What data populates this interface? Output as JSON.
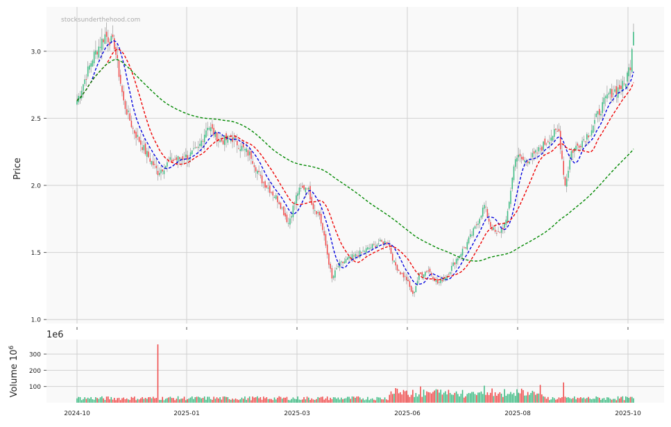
{
  "chart_data": [
    {
      "type": "candlestick",
      "panel": "price",
      "ylabel": "Price",
      "watermark": "stocksunderthehood.com",
      "ylim": [
        0.97,
        3.33
      ],
      "y_ticks": [
        "1.0",
        "1.5",
        "2.0",
        "2.5",
        "3.0"
      ],
      "x_ticks": [
        "2024-10",
        "2025-01",
        "2025-03",
        "2025-06",
        "2025-08",
        "2025-10"
      ],
      "grid": true,
      "up_color": "#3cbb82",
      "down_color": "#f04a4a",
      "ma_colors": [
        "#0000dd",
        "#ee0000",
        "#008800"
      ],
      "price_anchors": [
        [
          0,
          2.63
        ],
        [
          10,
          2.95
        ],
        [
          18,
          3.12
        ],
        [
          24,
          3.05
        ],
        [
          30,
          2.62
        ],
        [
          36,
          2.42
        ],
        [
          44,
          2.25
        ],
        [
          52,
          2.1
        ],
        [
          60,
          2.18
        ],
        [
          66,
          2.2
        ],
        [
          72,
          2.22
        ],
        [
          78,
          2.27
        ],
        [
          84,
          2.45
        ],
        [
          92,
          2.33
        ],
        [
          100,
          2.35
        ],
        [
          106,
          2.28
        ],
        [
          112,
          2.22
        ],
        [
          118,
          2.05
        ],
        [
          124,
          1.97
        ],
        [
          130,
          1.88
        ],
        [
          136,
          1.72
        ],
        [
          142,
          1.95
        ],
        [
          148,
          2.0
        ],
        [
          152,
          1.84
        ],
        [
          156,
          1.78
        ],
        [
          160,
          1.55
        ],
        [
          164,
          1.3
        ],
        [
          168,
          1.4
        ],
        [
          174,
          1.45
        ],
        [
          180,
          1.48
        ],
        [
          186,
          1.52
        ],
        [
          194,
          1.57
        ],
        [
          200,
          1.58
        ],
        [
          204,
          1.42
        ],
        [
          208,
          1.35
        ],
        [
          212,
          1.3
        ],
        [
          216,
          1.18
        ],
        [
          220,
          1.33
        ],
        [
          226,
          1.37
        ],
        [
          232,
          1.27
        ],
        [
          238,
          1.33
        ],
        [
          244,
          1.45
        ],
        [
          250,
          1.55
        ],
        [
          256,
          1.68
        ],
        [
          262,
          1.85
        ],
        [
          266,
          1.7
        ],
        [
          270,
          1.63
        ],
        [
          276,
          1.72
        ],
        [
          282,
          2.22
        ],
        [
          288,
          2.18
        ],
        [
          294,
          2.22
        ],
        [
          300,
          2.3
        ],
        [
          306,
          2.38
        ],
        [
          310,
          2.4
        ],
        [
          314,
          2.0
        ],
        [
          318,
          2.25
        ],
        [
          324,
          2.32
        ],
        [
          330,
          2.4
        ],
        [
          336,
          2.55
        ],
        [
          342,
          2.68
        ],
        [
          348,
          2.72
        ],
        [
          352,
          2.75
        ],
        [
          356,
          2.9
        ],
        [
          358,
          3.18
        ]
      ],
      "spike_volumes": [
        [
          52,
          360
        ],
        [
          221,
          100
        ],
        [
          262,
          105
        ],
        [
          298,
          110
        ],
        [
          313,
          125
        ],
        [
          205,
          90
        ]
      ],
      "moving_averages": [
        {
          "window": 10,
          "color": "#0000dd"
        },
        {
          "window": 20,
          "color": "#ee0000"
        },
        {
          "window": 100,
          "color": "#008800"
        }
      ]
    },
    {
      "type": "bar",
      "panel": "volume",
      "ylabel": "Volume  10",
      "ylabel_sup": "6",
      "scale_label": "1e6",
      "ylim": [
        0,
        390
      ],
      "y_ticks": [
        "100",
        "200",
        "300"
      ],
      "grid": true
    }
  ]
}
